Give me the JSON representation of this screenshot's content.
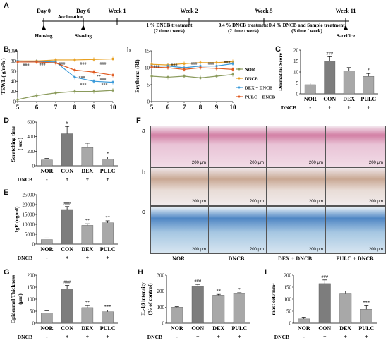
{
  "panel_letters": {
    "A": "A",
    "B": "B",
    "a": "a",
    "b": "b",
    "C": "C",
    "D": "D",
    "E": "E",
    "F": "F",
    "Fa": "a",
    "Fb": "b",
    "Fc": "c",
    "G": "G",
    "H": "H",
    "I": "I"
  },
  "timeline": {
    "points": [
      "Day 0",
      "Day 6",
      "Week 1",
      "Week 2",
      "Week 5",
      "Week 11"
    ],
    "events_below": [
      "Housing",
      "Shaving",
      "Sacrifice"
    ],
    "acclimation": "Acclimation",
    "treatments": [
      {
        "line1": "1 % DNCB treatment",
        "line2": "(2 time / week)"
      },
      {
        "line1": "0.4 % DNCB treatment",
        "line2": "(2 time / week)"
      },
      {
        "line1": "0.4 % DNCB and Sample treatment",
        "line2": "(3 time / week)"
      }
    ]
  },
  "group_labels": [
    "NOR",
    "CON",
    "DEX",
    "PULC"
  ],
  "dncb_row": {
    "label": "DNCB",
    "signs": [
      "-",
      "+",
      "+",
      "+"
    ]
  },
  "legend": [
    {
      "name": "NOR",
      "color": "#8a9a5b"
    },
    {
      "name": "DNCB",
      "color": "#e8a020"
    },
    {
      "name": "DEX + DNCB",
      "color": "#3a9ad9"
    },
    {
      "name": "PULC + DNCB",
      "color": "#e05a20"
    }
  ],
  "histology_captions": [
    "NOR",
    "DNCB",
    "DEX + DNCB",
    "PULC + DNCB"
  ],
  "scale_bar": "200 μm",
  "chart_data": [
    {
      "id": "Ba",
      "type": "line",
      "xlabel": "",
      "ylabel": "TEWL ( g/m²h )",
      "x": [
        5,
        6,
        7,
        8,
        9,
        10
      ],
      "ylim": [
        0,
        100
      ],
      "yticks": [
        0,
        20,
        40,
        60,
        80,
        100
      ],
      "series": [
        {
          "name": "NOR",
          "values": [
            4,
            12,
            17,
            20,
            20,
            22
          ]
        },
        {
          "name": "DNCB",
          "values": [
            80,
            80,
            82,
            82,
            83,
            84
          ]
        },
        {
          "name": "DEX + DNCB",
          "values": [
            80,
            79,
            78,
            48,
            40,
            38
          ]
        },
        {
          "name": "PULC + DNCB",
          "values": [
            78,
            78,
            76,
            62,
            58,
            52
          ]
        }
      ],
      "annotations": [
        "###",
        "###",
        "###",
        "###",
        "###",
        "***",
        "***",
        "**",
        "***",
        "***"
      ]
    },
    {
      "id": "Bb",
      "type": "line",
      "xlabel": "",
      "ylabel": "Erythema (RI)",
      "x": [
        5,
        6,
        7,
        8,
        9,
        10
      ],
      "ylim": [
        0,
        15
      ],
      "yticks": [
        0,
        5,
        10,
        15
      ],
      "series": [
        {
          "name": "NOR",
          "values": [
            7.5,
            7.2,
            7.5,
            7.0,
            7.5,
            8.0
          ]
        },
        {
          "name": "DNCB",
          "values": [
            11.0,
            10.8,
            11.2,
            11.5,
            11.5,
            11.8
          ]
        },
        {
          "name": "DEX + DNCB",
          "values": [
            10.5,
            10.5,
            10.0,
            10.5,
            10.5,
            11.2
          ]
        },
        {
          "name": "PULC + DNCB",
          "values": [
            10.2,
            10.0,
            9.5,
            10.0,
            9.8,
            9.5
          ]
        }
      ],
      "annotations": [
        "###",
        "###",
        "###",
        "###",
        "###"
      ]
    },
    {
      "id": "C",
      "type": "bar",
      "ylabel": "Dermatitis Score",
      "categories": [
        "NOR",
        "CON",
        "DEX",
        "PULC"
      ],
      "values": [
        4.2,
        15.0,
        10.5,
        8.0
      ],
      "errors": [
        0.8,
        2.0,
        1.5,
        1.3
      ],
      "ylim": [
        0,
        20
      ],
      "yticks": [
        0,
        5,
        10,
        15,
        20
      ],
      "annotations": [
        "",
        "###",
        "",
        "*"
      ]
    },
    {
      "id": "D",
      "type": "bar",
      "ylabel": "Scratching time ( sec )",
      "categories": [
        "NOR",
        "CON",
        "DEX",
        "PULC"
      ],
      "values": [
        80,
        440,
        250,
        90
      ],
      "errors": [
        20,
        100,
        60,
        30
      ],
      "ylim": [
        0,
        600
      ],
      "yticks": [
        0,
        200,
        400,
        600
      ],
      "annotations": [
        "",
        "#",
        "",
        "*"
      ]
    },
    {
      "id": "E",
      "type": "bar",
      "ylabel": "IgE (ng/ml)",
      "categories": [
        "NOR",
        "CON",
        "DEX",
        "PULC"
      ],
      "values": [
        2300,
        17500,
        9500,
        10800
      ],
      "errors": [
        800,
        1500,
        800,
        1000
      ],
      "ylim": [
        0,
        25000
      ],
      "yticks": [
        0,
        5000,
        10000,
        15000,
        20000,
        25000
      ],
      "annotations": [
        "",
        "###",
        "**",
        "**"
      ]
    },
    {
      "id": "G",
      "type": "bar",
      "ylabel": "Epidermal Thickness (μm)",
      "categories": [
        "NOR",
        "CON",
        "DEX",
        "PULC"
      ],
      "values": [
        42,
        142,
        65,
        48
      ],
      "errors": [
        10,
        15,
        8,
        6
      ],
      "ylim": [
        0,
        200
      ],
      "yticks": [
        0,
        50,
        100,
        150,
        200
      ],
      "annotations": [
        "",
        "###",
        "**",
        "***"
      ]
    },
    {
      "id": "H",
      "type": "bar",
      "ylabel": "IL-1β intensity (% of control)",
      "categories": [
        "NOR",
        "CON",
        "DEX",
        "PULC"
      ],
      "values": [
        100,
        230,
        175,
        185
      ],
      "errors": [
        3,
        12,
        5,
        5
      ],
      "ylim": [
        0,
        300
      ],
      "yticks": [
        0,
        100,
        200,
        300
      ],
      "annotations": [
        "",
        "###",
        "**",
        "*"
      ]
    },
    {
      "id": "I",
      "type": "bar",
      "ylabel": "mast cell/mm²",
      "categories": [
        "NOR",
        "CON",
        "DEX",
        "PULC"
      ],
      "values": [
        18,
        165,
        122,
        58
      ],
      "errors": [
        4,
        15,
        12,
        14
      ],
      "ylim": [
        0,
        200
      ],
      "yticks": [
        0,
        50,
        100,
        150,
        200
      ],
      "annotations": [
        "",
        "###",
        "",
        "***"
      ]
    }
  ]
}
